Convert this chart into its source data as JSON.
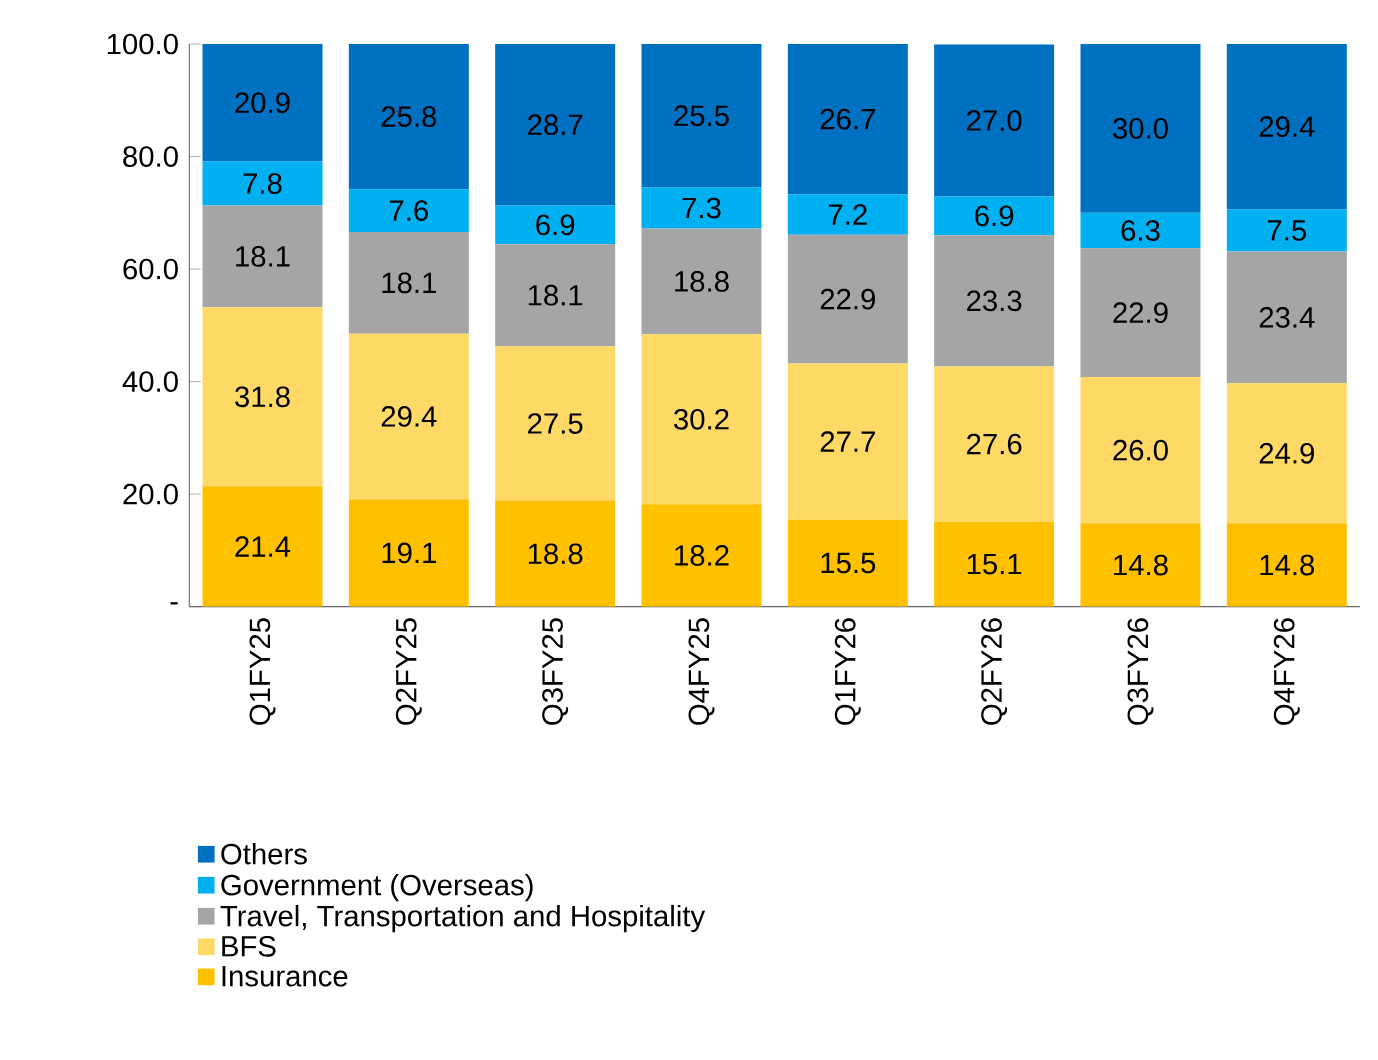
{
  "chart_data": {
    "type": "bar",
    "stacked": true,
    "legend": "bottom",
    "categories": [
      "Q1FY25",
      "Q2FY25",
      "Q3FY25",
      "Q4FY25",
      "Q1FY26",
      "Q2FY26",
      "Q3FY26",
      "Q4FY26"
    ],
    "ylim": [
      0,
      100
    ],
    "yticks": [
      {
        "value": 0,
        "label": "-"
      },
      {
        "value": 20,
        "label": "20.0"
      },
      {
        "value": 40,
        "label": "40.0"
      },
      {
        "value": 60,
        "label": "60.0"
      },
      {
        "value": 80,
        "label": "80.0"
      },
      {
        "value": 100,
        "label": "100.0"
      }
    ],
    "series": [
      {
        "name": "Insurance",
        "color": "#ffc000",
        "values": [
          21.4,
          19.1,
          18.8,
          18.2,
          15.5,
          15.1,
          14.8,
          14.8
        ],
        "value_labels": [
          "21.4",
          "19.1",
          "18.8",
          "18.2",
          "15.5",
          "15.1",
          "14.8",
          "14.8"
        ]
      },
      {
        "name": "BFS",
        "color": "#ffd966",
        "values": [
          31.8,
          29.4,
          27.5,
          30.2,
          27.7,
          27.6,
          26,
          24.9
        ],
        "value_labels": [
          "31.8",
          "29.4",
          "27.5",
          "30.2",
          "27.7",
          "27.6",
          "26.0",
          "24.9"
        ]
      },
      {
        "name": "Travel, Transportation and Hospitality",
        "color": "#a5a5a5",
        "values": [
          18.1,
          18.1,
          18.1,
          18.8,
          22.9,
          23.3,
          22.9,
          23.4
        ],
        "value_labels": [
          "18.1",
          "18.1",
          "18.1",
          "18.8",
          "22.9",
          "23.3",
          "22.9",
          "23.4"
        ]
      },
      {
        "name": "Government (Overseas)",
        "color": "#00b0f0",
        "values": [
          7.8,
          7.6,
          6.9,
          7.3,
          7.2,
          6.9,
          6.3,
          7.5
        ],
        "value_labels": [
          "7.8",
          "7.6",
          "6.9",
          "7.3",
          "7.2",
          "6.9",
          "6.3",
          "7.5"
        ]
      },
      {
        "name": "Others",
        "color": "#0070c0",
        "values": [
          20.9,
          25.8,
          28.7,
          25.5,
          26.7,
          27,
          30,
          29.4
        ],
        "value_labels": [
          "20.9",
          "25.8",
          "28.7",
          "25.5",
          "26.7",
          "27.0",
          "30.0",
          "29.4"
        ]
      }
    ]
  }
}
